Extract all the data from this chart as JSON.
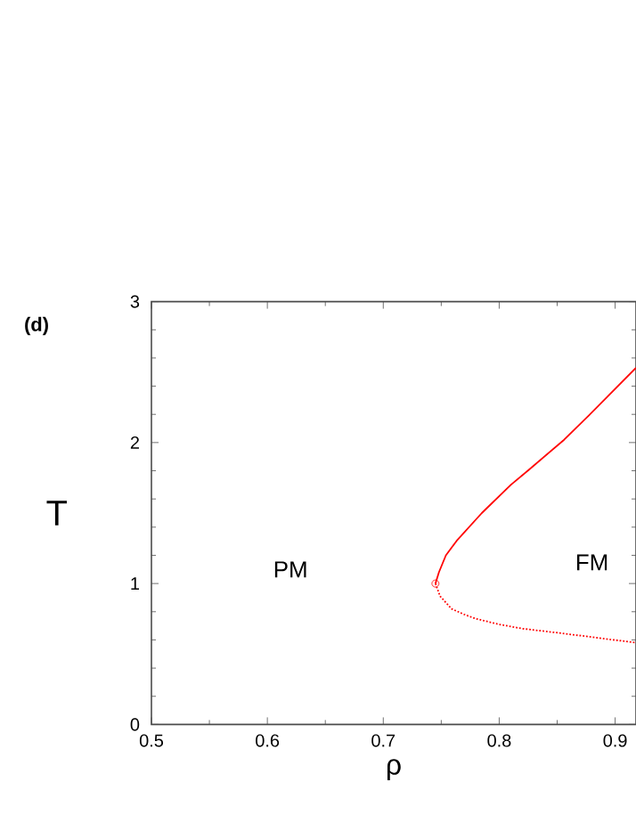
{
  "chart_data": {
    "type": "line",
    "title": "(d)",
    "xlabel": "ρ",
    "ylabel": "T",
    "annotations": [
      "PM",
      "FM"
    ],
    "series": [
      {
        "color": "#ff0000",
        "line_style": "solid",
        "marker": "none",
        "x": [
          0.745,
          0.748,
          0.751,
          0.754,
          0.764,
          0.785,
          0.81,
          0.826,
          0.856,
          0.877,
          0.918
        ],
        "values": [
          1.0,
          1.08,
          1.14,
          1.2,
          1.31,
          1.5,
          1.7,
          1.81,
          2.02,
          2.19,
          2.53
        ]
      },
      {
        "color": "#ff0000",
        "line_style": "dotted",
        "marker": "none",
        "x": [
          0.745,
          0.749,
          0.759,
          0.77,
          0.78,
          0.8,
          0.82,
          0.851,
          0.88,
          0.918
        ],
        "values": [
          1.0,
          0.91,
          0.82,
          0.78,
          0.75,
          0.71,
          0.68,
          0.65,
          0.62,
          0.58
        ]
      },
      {
        "type": "scatter",
        "color": "#ff0000",
        "marker": "circle",
        "x": [
          0.745
        ],
        "values": [
          1.0
        ]
      }
    ],
    "xlim": [
      0.5,
      0.918
    ],
    "ylim": [
      0,
      3
    ],
    "xticks": [
      0.5,
      0.6,
      0.7,
      0.8,
      0.9
    ],
    "yticks": [
      0,
      1,
      2,
      3
    ]
  }
}
